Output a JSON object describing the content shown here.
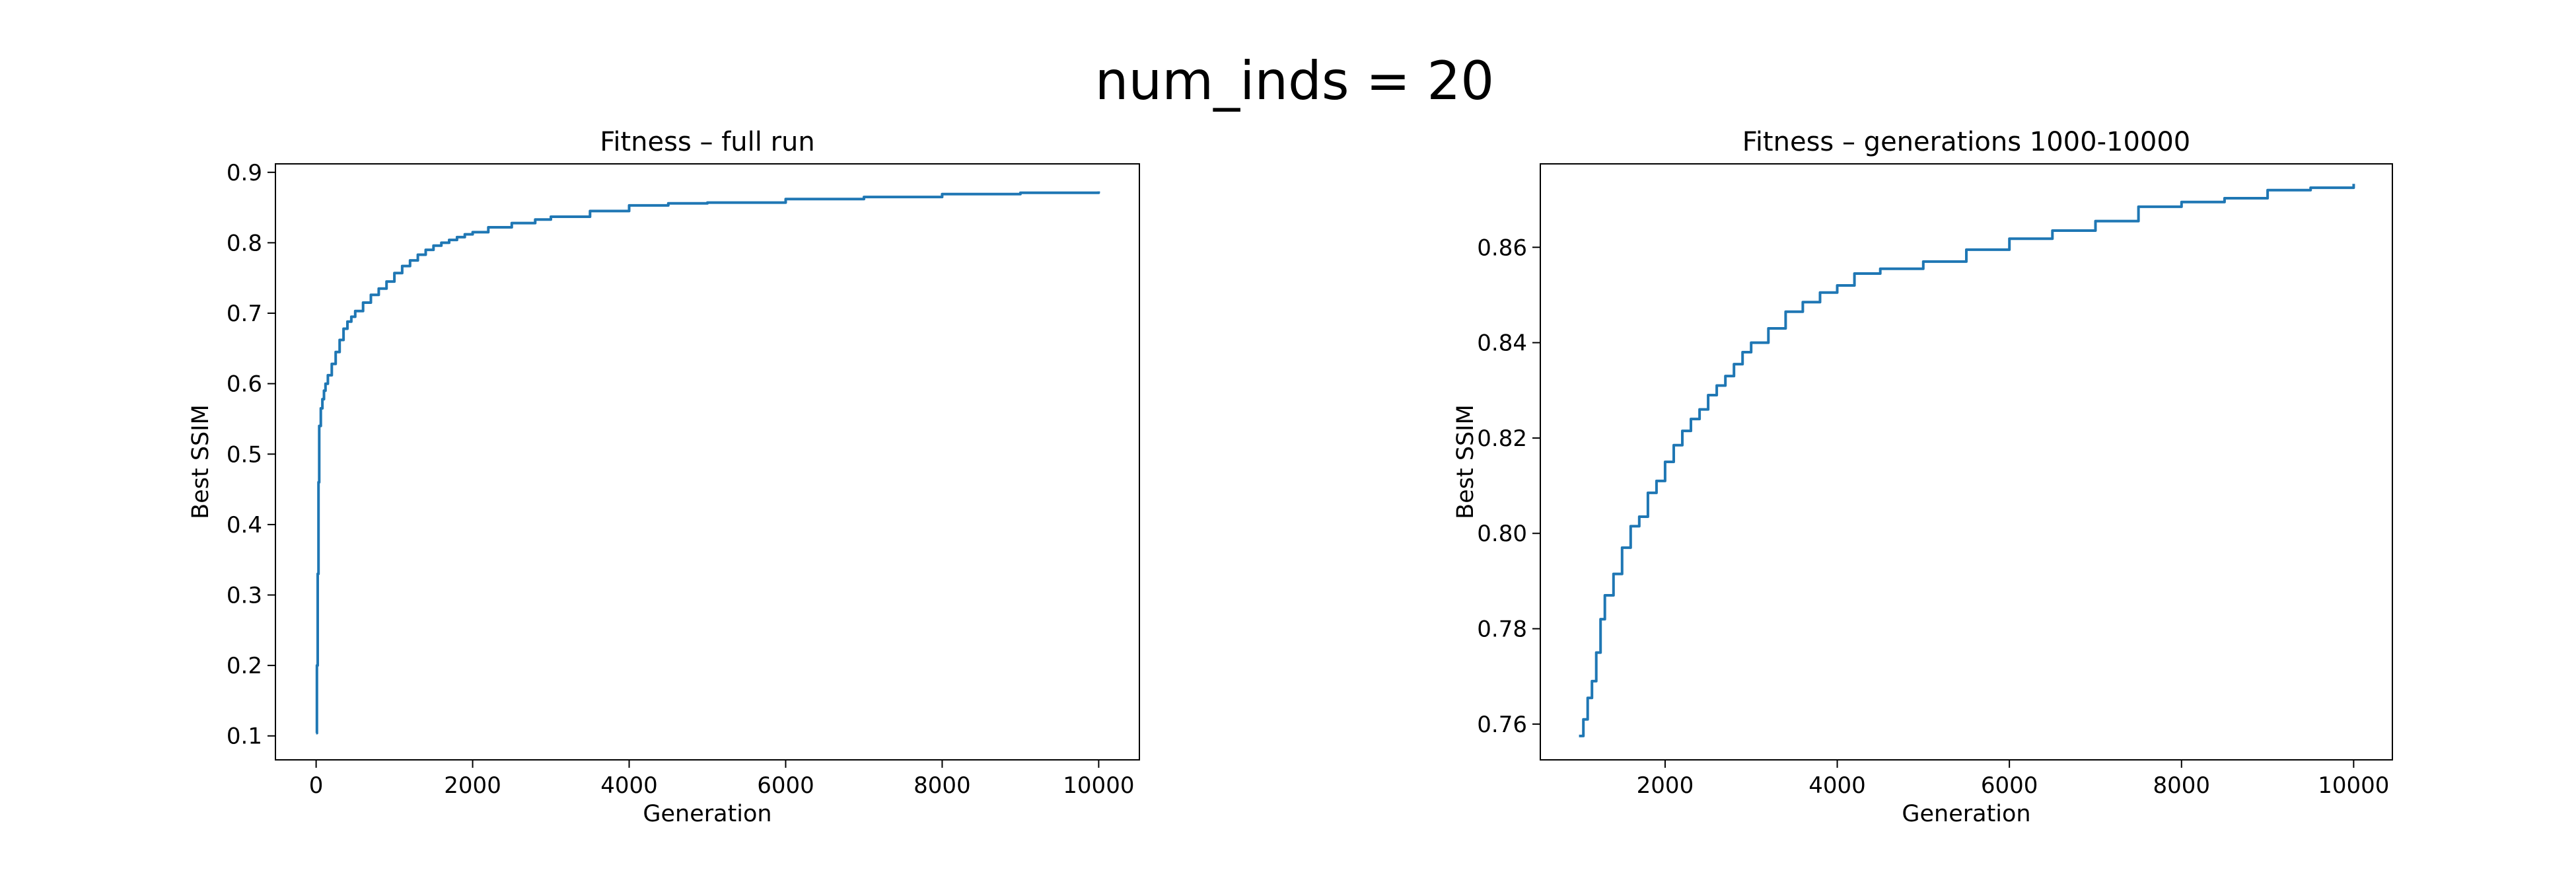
{
  "figure": {
    "suptitle": "num_inds = 20"
  },
  "chart_data": [
    {
      "type": "line",
      "title": "Fitness – full run",
      "xlabel": "Generation",
      "ylabel": "Best SSIM",
      "xlim": [
        -520,
        10520
      ],
      "ylim": [
        0.066,
        0.912
      ],
      "xticks": [
        0,
        2000,
        4000,
        6000,
        8000,
        10000
      ],
      "xtick_labels": [
        "0",
        "2000",
        "4000",
        "6000",
        "8000",
        "10000"
      ],
      "yticks": [
        0.1,
        0.2,
        0.3,
        0.4,
        0.5,
        0.6,
        0.7,
        0.8,
        0.9
      ],
      "ytick_labels": [
        "0.1",
        "0.2",
        "0.3",
        "0.4",
        "0.5",
        "0.6",
        "0.7",
        "0.8",
        "0.9"
      ],
      "grid": false,
      "color": "#1f77b4",
      "series": [
        {
          "x": [
            0,
            10,
            20,
            30,
            40,
            60,
            80,
            100,
            120,
            150,
            200,
            250,
            300,
            350,
            400,
            450,
            500,
            600,
            700,
            800,
            900,
            1000,
            1100,
            1200,
            1300,
            1400,
            1500,
            1600,
            1700,
            1800,
            1900,
            2000,
            2200,
            2500,
            2800,
            3000,
            3500,
            4000,
            4500,
            5000,
            6000,
            7000,
            8000,
            9000,
            10000
          ],
          "y": [
            0.104,
            0.2,
            0.33,
            0.46,
            0.54,
            0.565,
            0.578,
            0.59,
            0.6,
            0.612,
            0.628,
            0.645,
            0.662,
            0.678,
            0.688,
            0.695,
            0.703,
            0.715,
            0.726,
            0.735,
            0.745,
            0.757,
            0.767,
            0.775,
            0.783,
            0.79,
            0.796,
            0.8,
            0.804,
            0.808,
            0.812,
            0.815,
            0.822,
            0.828,
            0.833,
            0.837,
            0.845,
            0.853,
            0.856,
            0.857,
            0.862,
            0.865,
            0.869,
            0.871,
            0.873
          ]
        }
      ]
    },
    {
      "type": "line",
      "title": "Fitness – generations 1000-10000",
      "xlabel": "Generation",
      "ylabel": "Best SSIM",
      "xlim": [
        550,
        10450
      ],
      "ylim": [
        0.7525,
        0.8775
      ],
      "xticks": [
        2000,
        4000,
        6000,
        8000,
        10000
      ],
      "xtick_labels": [
        "2000",
        "4000",
        "6000",
        "8000",
        "10000"
      ],
      "yticks": [
        0.76,
        0.78,
        0.8,
        0.82,
        0.84,
        0.86
      ],
      "ytick_labels": [
        "0.76",
        "0.78",
        "0.80",
        "0.82",
        "0.84",
        "0.86"
      ],
      "grid": false,
      "color": "#1f77b4",
      "series": [
        {
          "x": [
            1000,
            1050,
            1100,
            1150,
            1200,
            1250,
            1300,
            1400,
            1500,
            1600,
            1700,
            1800,
            1900,
            2000,
            2100,
            2200,
            2300,
            2400,
            2500,
            2600,
            2700,
            2800,
            2900,
            3000,
            3200,
            3400,
            3600,
            3800,
            4000,
            4200,
            4500,
            5000,
            5500,
            6000,
            6500,
            7000,
            7500,
            8000,
            8500,
            9000,
            9500,
            10000
          ],
          "y": [
            0.7575,
            0.761,
            0.7655,
            0.769,
            0.775,
            0.782,
            0.787,
            0.7915,
            0.797,
            0.8015,
            0.8035,
            0.8085,
            0.811,
            0.815,
            0.8185,
            0.8215,
            0.824,
            0.826,
            0.829,
            0.831,
            0.833,
            0.8355,
            0.838,
            0.84,
            0.843,
            0.8465,
            0.8485,
            0.8505,
            0.852,
            0.8545,
            0.8555,
            0.857,
            0.8595,
            0.8618,
            0.8635,
            0.8655,
            0.8685,
            0.8695,
            0.8703,
            0.872,
            0.8725,
            0.8733
          ]
        }
      ]
    }
  ]
}
